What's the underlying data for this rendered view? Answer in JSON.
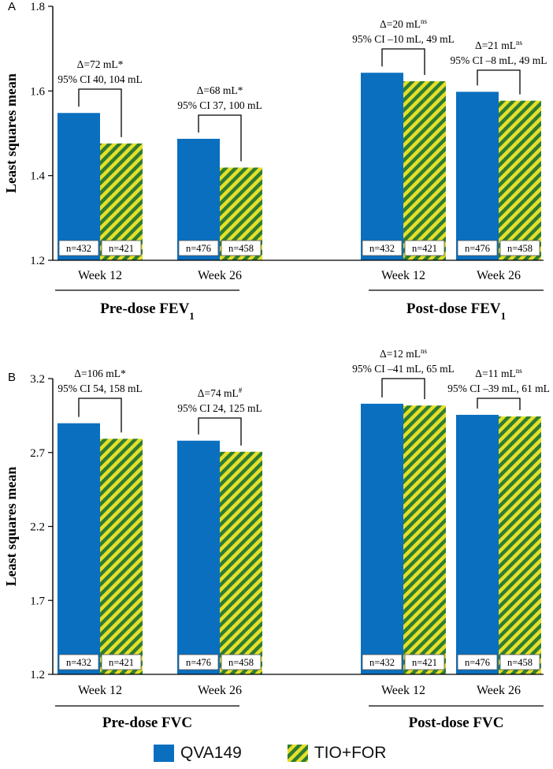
{
  "colors": {
    "qva": "#0a6fbf",
    "stripe_yellow": "#e6df2a",
    "stripe_green": "#2e7d32",
    "axis": "#000000"
  },
  "legend": {
    "qva": "QVA149",
    "tio": "TIO+FOR"
  },
  "chart_data": [
    {
      "type": "bar",
      "panel": "A",
      "ylabel": "Least squares mean",
      "ylim": [
        1.2,
        1.8
      ],
      "yticks": [
        "1.2",
        "1.4",
        "1.6",
        "1.8"
      ],
      "series": [
        {
          "name": "QVA149",
          "values": [
            1.548,
            1.487,
            1.643,
            1.598
          ]
        },
        {
          "name": "TIO+FOR",
          "values": [
            1.476,
            1.419,
            1.623,
            1.577
          ]
        }
      ],
      "categories": [
        "Week 12",
        "Week 26",
        "Week 12",
        "Week 26"
      ],
      "n_labels": [
        [
          "n=432",
          "n=421"
        ],
        [
          "n=476",
          "n=458"
        ],
        [
          "n=432",
          "n=421"
        ],
        [
          "n=476",
          "n=458"
        ]
      ],
      "groups": [
        {
          "label": "Pre-dose FEV",
          "sub": "1"
        },
        {
          "label": "Post-dose FEV",
          "sub": "1"
        }
      ],
      "annotations": [
        {
          "delta": "Δ=72 mL*",
          "sup": "",
          "ci": "95% CI 40, 104 mL"
        },
        {
          "delta": "Δ=68 mL*",
          "sup": "",
          "ci": "95% CI 37, 100 mL"
        },
        {
          "delta": "Δ=20 mL",
          "sup": "ns",
          "ci": "95% CI –10 mL, 49 mL"
        },
        {
          "delta": "Δ=21 mL",
          "sup": "ns",
          "ci": "95% CI –8 mL, 49 mL"
        }
      ]
    },
    {
      "type": "bar",
      "panel": "B",
      "ylabel": "Least squares mean",
      "ylim": [
        1.2,
        3.2
      ],
      "yticks": [
        "1.2",
        "1.7",
        "2.2",
        "2.7",
        "3.2"
      ],
      "series": [
        {
          "name": "QVA149",
          "values": [
            2.898,
            2.78,
            3.03,
            2.955
          ]
        },
        {
          "name": "TIO+FOR",
          "values": [
            2.793,
            2.705,
            3.018,
            2.944
          ]
        }
      ],
      "categories": [
        "Week 12",
        "Week 26",
        "Week 12",
        "Week 26"
      ],
      "n_labels": [
        [
          "n=432",
          "n=421"
        ],
        [
          "n=476",
          "n=458"
        ],
        [
          "n=432",
          "n=421"
        ],
        [
          "n=476",
          "n=458"
        ]
      ],
      "groups": [
        {
          "label": "Pre-dose FVC",
          "sub": ""
        },
        {
          "label": "Post-dose FVC",
          "sub": ""
        }
      ],
      "annotations": [
        {
          "delta": "Δ=106 mL*",
          "sup": "",
          "ci": "95% CI 54, 158 mL"
        },
        {
          "delta": "Δ=74 mL",
          "sup": "#",
          "ci": "95% CI 24, 125 mL"
        },
        {
          "delta": "Δ=12 mL",
          "sup": "ns",
          "ci": "95% CI –41 mL, 65 mL"
        },
        {
          "delta": "Δ=11 mL",
          "sup": "ns",
          "ci": "95% CI –39 mL, 61 mL"
        }
      ]
    }
  ]
}
